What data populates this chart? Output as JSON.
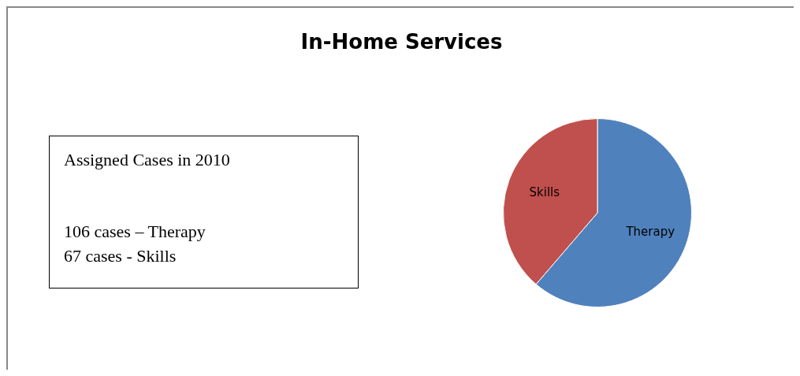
{
  "chart_data": {
    "type": "pie",
    "title": "In-Home Services",
    "categories": [
      "Therapy",
      "Skills"
    ],
    "values": [
      61.3,
      38.7
    ],
    "colors": [
      "#4f81bd",
      "#c0504d"
    ],
    "annotations": [
      "Assigned Cases in 2010",
      "106 cases – Therapy",
      "67 cases - Skills"
    ],
    "legend": false
  }
}
